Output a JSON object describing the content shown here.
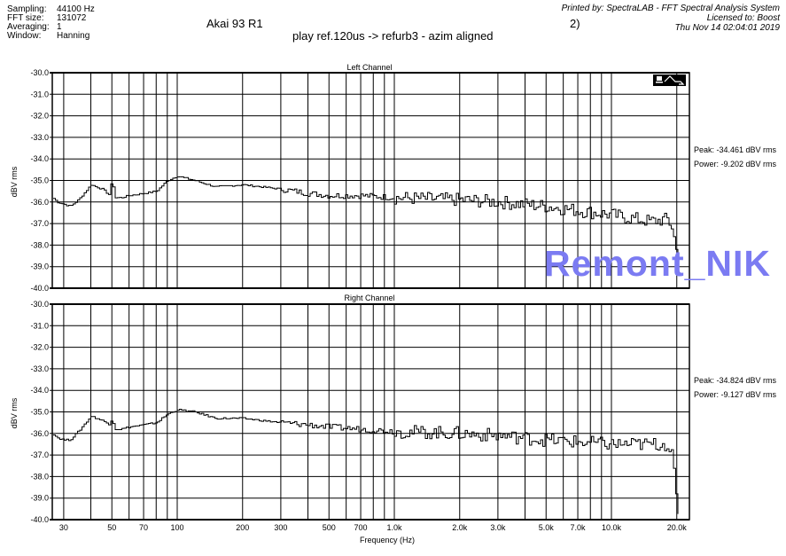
{
  "header": {
    "settings": [
      {
        "label": "Sampling:",
        "value": "44100 Hz"
      },
      {
        "label": "FFT size:",
        "value": "131072"
      },
      {
        "label": "Averaging:",
        "value": "1"
      },
      {
        "label": "Window:",
        "value": "Hanning"
      }
    ],
    "title": "Akai 93 R1",
    "subtitle": "play ref.120us  -> refurb3 - azim aligned",
    "title_fragment": "2)",
    "printed_by": "Printed by: SpectraLAB - FFT Spectral Analysis System",
    "licensed_to": "Licensed to: Boost",
    "timestamp": "Thu Nov 14 02:04:01 2019"
  },
  "watermark": "Remont_NIK",
  "colors": {
    "trace": "#000000",
    "grid": "#000000",
    "watermark": "#7b7bf2"
  },
  "chart_data": [
    {
      "type": "line",
      "title": "Left Channel",
      "xlabel": "Frequency (Hz)",
      "ylabel": "dBV rms",
      "xscale": "log",
      "xlim": [
        26.6,
        22400
      ],
      "ylim": [
        -40,
        -30
      ],
      "grid": true,
      "yticks": [
        "-30.0",
        "-31.0",
        "-32.0",
        "-33.0",
        "-34.0",
        "-35.0",
        "-36.0",
        "-37.0",
        "-38.0",
        "-39.0",
        "-40.0"
      ],
      "peak": "Peak: -34.461 dBV rms",
      "power": "Power: -9.202 dBV rms",
      "x": [
        26.6,
        28,
        30,
        32,
        35,
        40,
        45,
        49,
        50,
        51,
        55,
        60,
        70,
        80,
        90,
        100,
        120,
        150,
        200,
        300,
        400,
        500,
        700,
        1000,
        2000,
        3000,
        5000,
        7000,
        10000,
        15000,
        18000,
        19000,
        20000,
        20500,
        21000
      ],
      "y": [
        -35.8,
        -36.0,
        -36.1,
        -36.2,
        -35.9,
        -35.2,
        -35.4,
        -35.7,
        -34.5,
        -35.8,
        -35.8,
        -35.7,
        -35.6,
        -35.5,
        -35.0,
        -34.8,
        -35.0,
        -35.3,
        -35.2,
        -35.4,
        -35.6,
        -35.7,
        -35.7,
        -35.8,
        -35.9,
        -36.0,
        -36.2,
        -36.4,
        -36.6,
        -36.9,
        -36.8,
        -37.2,
        -38.5,
        -39.5,
        -40.0
      ]
    },
    {
      "type": "line",
      "title": "Right Channel",
      "xlabel": "Frequency (Hz)",
      "ylabel": "dBV rms",
      "xscale": "log",
      "xlim": [
        26.6,
        22400
      ],
      "ylim": [
        -40,
        -30
      ],
      "grid": true,
      "yticks": [
        "-30.0",
        "-31.0",
        "-32.0",
        "-33.0",
        "-34.0",
        "-35.0",
        "-36.0",
        "-37.0",
        "-38.0",
        "-39.0",
        "-40.0"
      ],
      "xticks": [
        "30",
        "50",
        "70",
        "100",
        "200",
        "300",
        "500",
        "700",
        "1.0k",
        "2.0k",
        "3.0k",
        "5.0k",
        "7.0k",
        "10.0k",
        "20.0k"
      ],
      "xtick_values": [
        30,
        50,
        70,
        100,
        200,
        300,
        500,
        700,
        1000,
        2000,
        3000,
        5000,
        7000,
        10000,
        20000
      ],
      "peak": "Peak: -34.824 dBV rms",
      "power": "Power: -9.127 dBV rms",
      "x": [
        26.6,
        28,
        30,
        32,
        35,
        40,
        45,
        49,
        50,
        51,
        55,
        60,
        70,
        80,
        90,
        100,
        120,
        150,
        200,
        300,
        400,
        500,
        700,
        1000,
        2000,
        3000,
        5000,
        7000,
        10000,
        15000,
        18000,
        19000,
        19500,
        20000,
        20500
      ],
      "y": [
        -36.0,
        -36.2,
        -36.3,
        -36.3,
        -35.9,
        -35.2,
        -35.4,
        -35.6,
        -35.1,
        -35.8,
        -35.8,
        -35.7,
        -35.6,
        -35.5,
        -35.1,
        -34.9,
        -35.0,
        -35.3,
        -35.3,
        -35.5,
        -35.6,
        -35.7,
        -35.8,
        -35.9,
        -36.0,
        -36.1,
        -36.3,
        -36.4,
        -36.5,
        -36.5,
        -36.5,
        -37.0,
        -38.0,
        -39.5,
        -40.0
      ]
    }
  ]
}
